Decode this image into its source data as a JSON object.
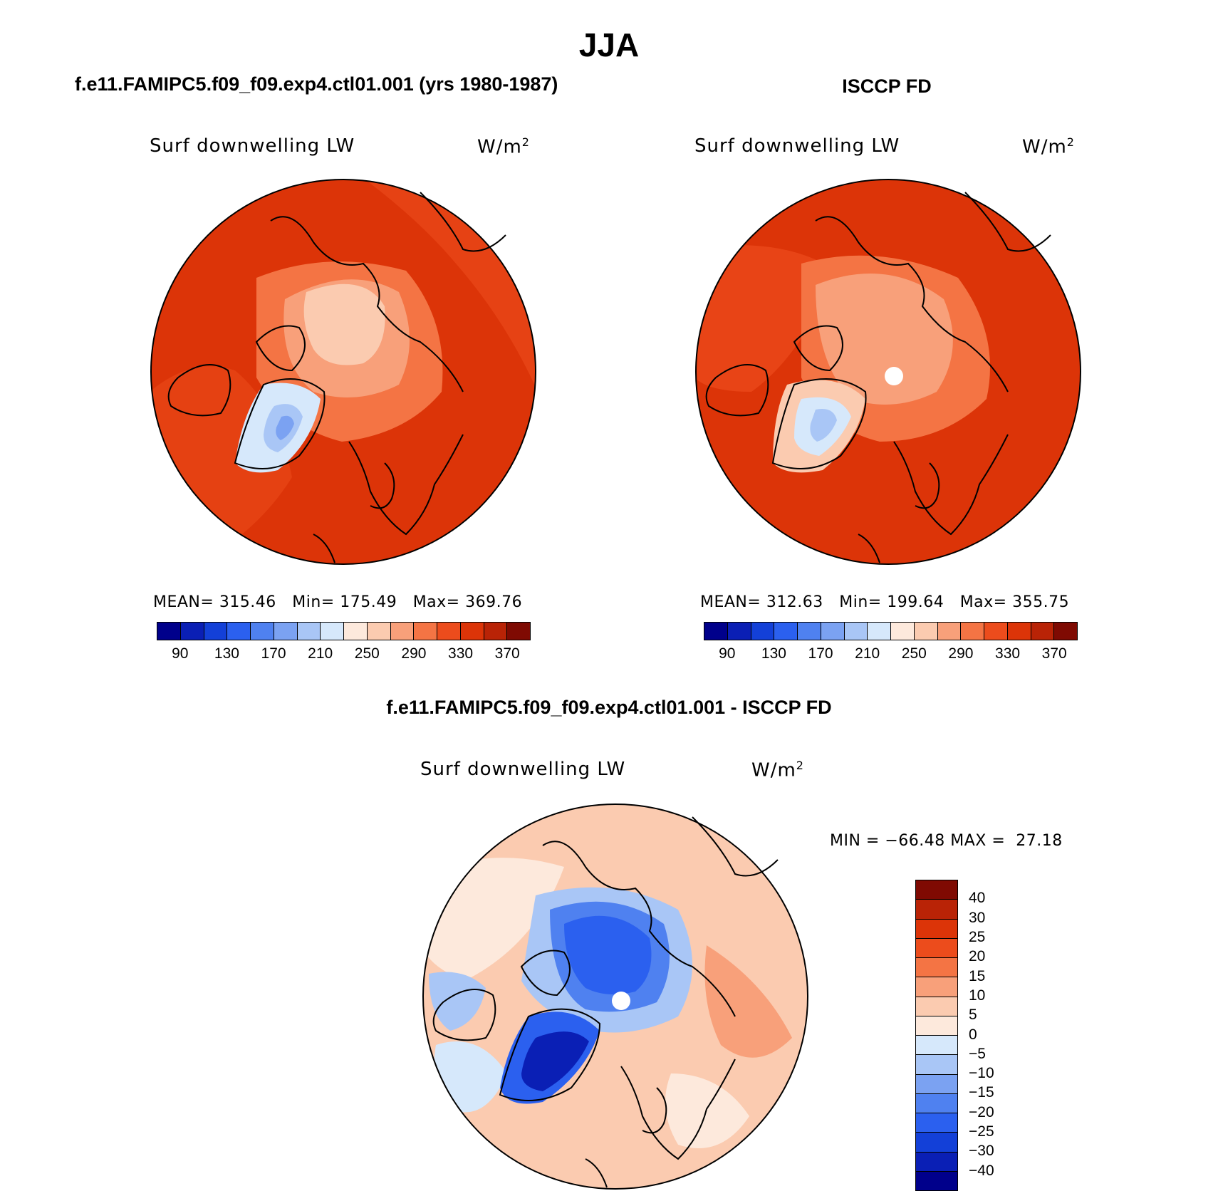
{
  "title": "JJA",
  "panels": [
    {
      "header": "f.e11.FAMIPC5.f09_f09.exp4.ctl01.001 (yrs 1980-1987)",
      "variable": "Surf downwelling LW",
      "units_base": "W/m",
      "units_exp": "2",
      "stats": "MEAN= 315.46   Min= 175.49   Max= 369.76"
    },
    {
      "header": "ISCCP FD",
      "variable": "Surf downwelling LW",
      "units_base": "W/m",
      "units_exp": "2",
      "stats": "MEAN= 312.63   Min= 199.64   Max= 355.75"
    },
    {
      "header": "f.e11.FAMIPC5.f09_f09.exp4.ctl01.001 - ISCCP FD",
      "variable": "Surf downwelling LW",
      "units_base": "W/m",
      "units_exp": "2",
      "stats": "MIN = −66.48 MAX =  27.18"
    }
  ],
  "colorbar_abs": {
    "colors": [
      "#00008b",
      "#0a1fb5",
      "#1340d8",
      "#2b60ef",
      "#4f81f0",
      "#7ba2f2",
      "#a9c6f6",
      "#d6e8fb",
      "#fde9dc",
      "#fbcbb0",
      "#f8a07a",
      "#f47444",
      "#ec4c1c",
      "#dc3408",
      "#b92306",
      "#7f0a02"
    ],
    "tick_labels": [
      "90",
      "130",
      "170",
      "210",
      "250",
      "290",
      "330",
      "370"
    ]
  },
  "colorbar_diff": {
    "colors": [
      "#00008b",
      "#0a1fb5",
      "#1340d8",
      "#2b60ef",
      "#4f81f0",
      "#7ba2f2",
      "#a9c6f6",
      "#d6e8fb",
      "#fde9dc",
      "#fbcbb0",
      "#f8a07a",
      "#f47444",
      "#ec4c1c",
      "#dc3408",
      "#b92306",
      "#7f0a02"
    ],
    "tick_labels": [
      "40",
      "30",
      "25",
      "20",
      "15",
      "10",
      "5",
      "0",
      "−5",
      "−10",
      "−15",
      "−20",
      "−25",
      "−30",
      "−40"
    ]
  }
}
